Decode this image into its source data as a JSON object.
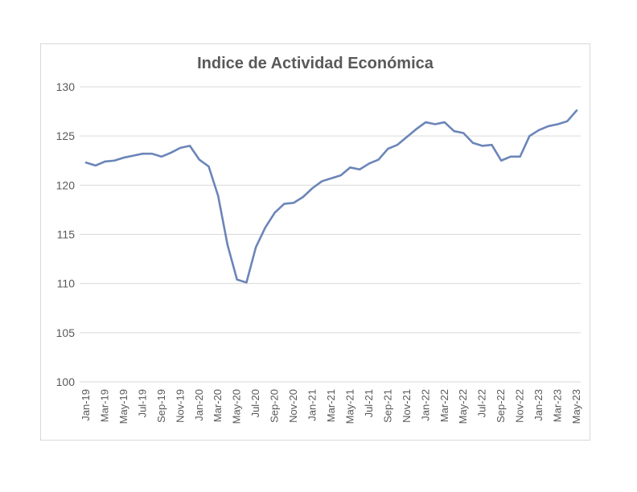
{
  "chart_data": {
    "type": "line",
    "title": "Indice de Actividad Económica",
    "xlabel": "",
    "ylabel": "",
    "ylim": [
      100,
      130
    ],
    "yticks": [
      100,
      105,
      110,
      115,
      120,
      125,
      130
    ],
    "grid": true,
    "legend": "none",
    "color": "#6b85b8",
    "x": [
      "Jan-19",
      "Feb-19",
      "Mar-19",
      "Apr-19",
      "May-19",
      "Jun-19",
      "Jul-19",
      "Aug-19",
      "Sep-19",
      "Oct-19",
      "Nov-19",
      "Dec-19",
      "Jan-20",
      "Feb-20",
      "Mar-20",
      "Apr-20",
      "May-20",
      "Jun-20",
      "Jul-20",
      "Aug-20",
      "Sep-20",
      "Oct-20",
      "Nov-20",
      "Dec-20",
      "Jan-21",
      "Feb-21",
      "Mar-21",
      "Apr-21",
      "May-21",
      "Jun-21",
      "Jul-21",
      "Aug-21",
      "Sep-21",
      "Oct-21",
      "Nov-21",
      "Dec-21",
      "Jan-22",
      "Feb-22",
      "Mar-22",
      "Apr-22",
      "May-22",
      "Jun-22",
      "Jul-22",
      "Aug-22",
      "Sep-22",
      "Oct-22",
      "Nov-22",
      "Dec-22",
      "Jan-23",
      "Feb-23",
      "Mar-23",
      "Apr-23",
      "May-23"
    ],
    "xtick_labels": [
      "Jan-19",
      "Mar-19",
      "May-19",
      "Jul-19",
      "Sep-19",
      "Nov-19",
      "Jan-20",
      "Mar-20",
      "May-20",
      "Jul-20",
      "Sep-20",
      "Nov-20",
      "Jan-21",
      "Mar-21",
      "May-21",
      "Jul-21",
      "Sep-21",
      "Nov-21",
      "Jan-22",
      "Mar-22",
      "May-22",
      "Jul-22",
      "Sep-22",
      "Nov-22",
      "Jan-23",
      "Mar-23",
      "May-23"
    ],
    "series": [
      {
        "values": [
          122.3,
          122.0,
          122.4,
          122.5,
          122.8,
          123.0,
          123.2,
          123.2,
          122.9,
          123.3,
          123.8,
          124.0,
          122.6,
          121.9,
          118.9,
          113.9,
          110.4,
          110.1,
          113.7,
          115.7,
          117.2,
          118.1,
          118.2,
          118.8,
          119.7,
          120.4,
          120.7,
          121.0,
          121.8,
          121.6,
          122.2,
          122.6,
          123.7,
          124.1,
          124.9,
          125.7,
          126.4,
          126.2,
          126.4,
          125.5,
          125.3,
          124.3,
          124.0,
          124.1,
          122.5,
          122.9,
          122.9,
          125.0,
          125.6,
          126.0,
          126.2,
          126.5,
          127.6
        ]
      }
    ]
  }
}
